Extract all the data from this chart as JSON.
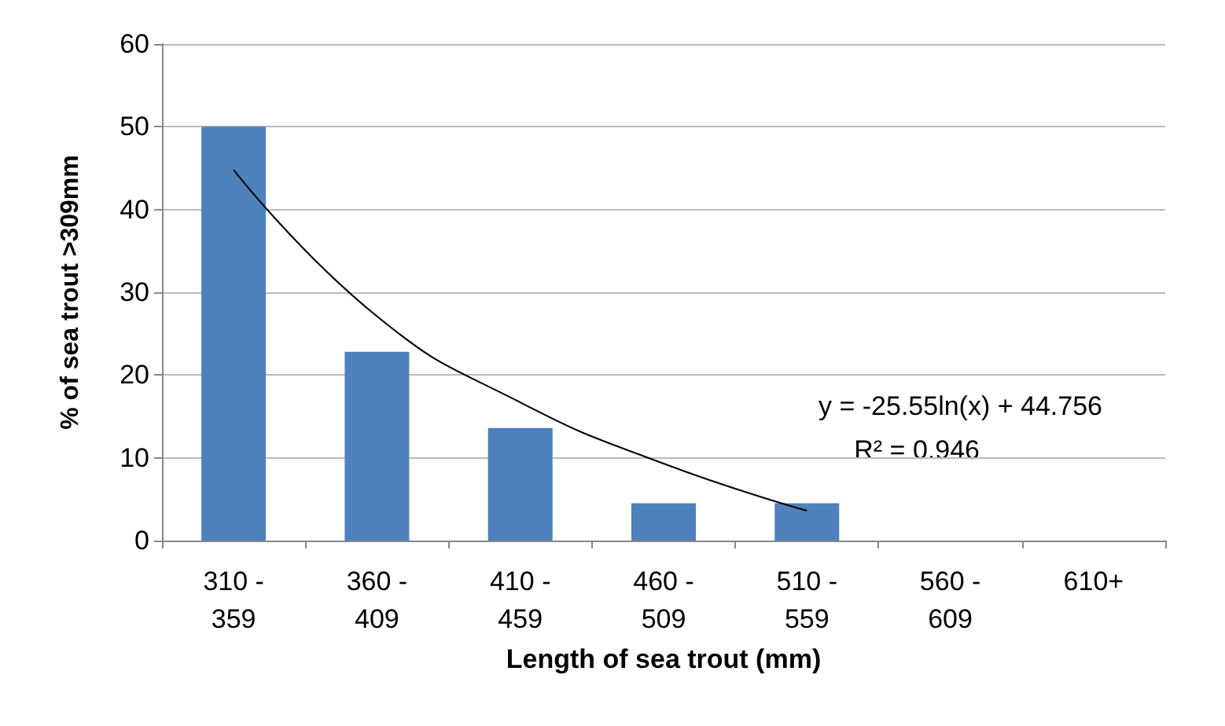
{
  "chart_data": {
    "type": "bar",
    "xlabel": "Length of sea trout (mm)",
    "ylabel": "% of sea trout >309mm",
    "categories": [
      "310 - 359",
      "360 - 409",
      "410 - 459",
      "460 - 509",
      "510 - 559",
      "560 - 609",
      "610+"
    ],
    "series": [
      {
        "color": "#4f81bd",
        "values": [
          50,
          22.8,
          13.6,
          4.5,
          4.5,
          0,
          0
        ]
      },
      {
        "type": "line",
        "color": "#000000",
        "values": [
          44.8,
          27.1,
          16.7,
          9.3,
          3.6,
          null,
          null
        ]
      }
    ],
    "annotations": [
      "y = -25.55ln(x) + 44.756",
      "R² = 0.946"
    ],
    "ylim": [
      0,
      60
    ],
    "yticks": [
      0,
      10,
      20,
      30,
      40,
      50,
      60
    ],
    "grid": "y",
    "marker": "none"
  }
}
